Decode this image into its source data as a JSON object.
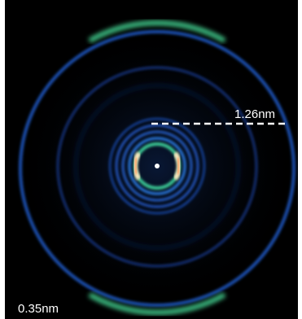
{
  "labels": {
    "inner_spacing": "1.26nm",
    "outer_spacing": "0.35nm"
  }
}
